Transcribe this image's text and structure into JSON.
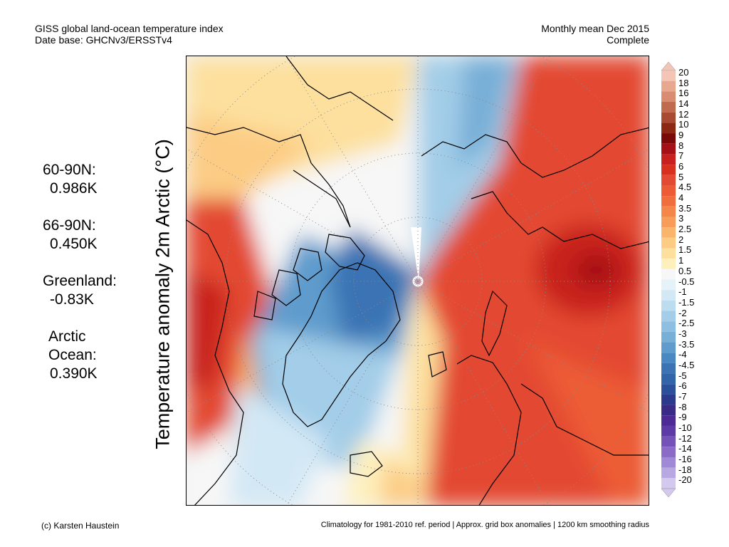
{
  "header": {
    "title_line1": "GISS global land-ocean temperature index",
    "title_line2": "Date base: GHCNv3/ERSSTv4",
    "period_line1": "Monthly mean Dec 2015",
    "period_line2": "Complete"
  },
  "stats": [
    {
      "name": "60-90N:",
      "value": "0.986K"
    },
    {
      "name": "66-90N:",
      "value": "0.450K"
    },
    {
      "name": "Greenland:",
      "value": "-0.83K"
    },
    {
      "name_line1": "Arctic",
      "name_line2": "Ocean:",
      "value": "0.390K"
    }
  ],
  "axis_label": "Temperature anomaly 2m Arctic (°C)",
  "colorbar": {
    "labels": [
      "20",
      "18",
      "16",
      "14",
      "12",
      "10",
      "9",
      "8",
      "7",
      "6",
      "5",
      "4.5",
      "4",
      "3.5",
      "3",
      "2.5",
      "2",
      "1.5",
      "1",
      "0.5",
      "-0.5",
      "-1",
      "-1.5",
      "-2",
      "-2.5",
      "-3",
      "-3.5",
      "-4",
      "-4.5",
      "-5",
      "-6",
      "-7",
      "-8",
      "-9",
      "-10",
      "-12",
      "-14",
      "-16",
      "-18",
      "-20"
    ],
    "colors": [
      "#f2c5b6",
      "#e8a88f",
      "#d98c71",
      "#c06a4f",
      "#a94a33",
      "#8d2814",
      "#7a0a0a",
      "#a50f15",
      "#c8201e",
      "#d7301f",
      "#e34a33",
      "#ec5b36",
      "#f06e3d",
      "#f4864a",
      "#f79d59",
      "#fab56c",
      "#fccc84",
      "#fde09e",
      "#fef0bd",
      "#f7f7f7",
      "#e6f2fa",
      "#d3e8f5",
      "#bcdcef",
      "#a3cde8",
      "#8ebfe1",
      "#78afd7",
      "#5f9ccd",
      "#4a88c2",
      "#3b73b4",
      "#3264a9",
      "#2c4f9a",
      "#2b3a8c",
      "#3a2b86",
      "#4c2c94",
      "#5e3aa6",
      "#7452b8",
      "#8a6cc8",
      "#a089d6",
      "#b8a8e2",
      "#d3c9ee"
    ]
  },
  "footer": {
    "left": "(c) Karsten Haustein",
    "right": "Climatology for 1981-2010 ref. period | Approx. grid box anomalies | 1200 km smoothing radius"
  }
}
